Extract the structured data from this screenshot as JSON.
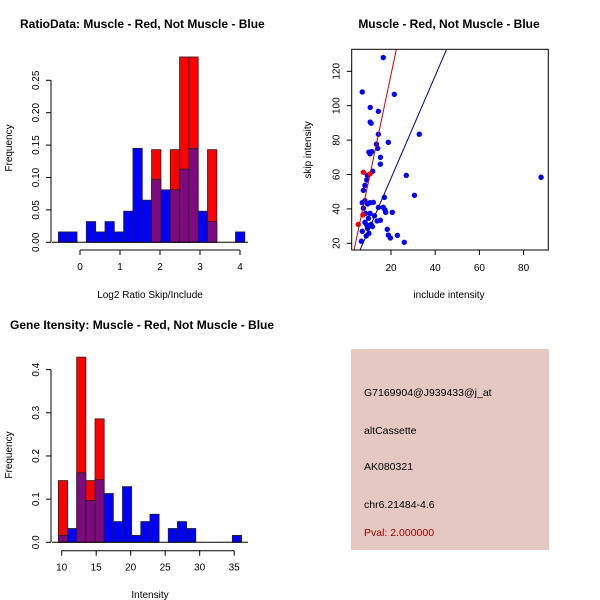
{
  "colors": {
    "muscle": "#ff0000",
    "not_muscle": "#0000ff",
    "overlap": "#7f0a7f",
    "info_bg": "#e5c8c2",
    "pval": "#a00000"
  },
  "chart_data": [
    {
      "type": "bar",
      "title": "RatioData: Muscle - Red, Not Muscle - Blue",
      "xlabel": "Log2 Ratio Skip/Include",
      "ylabel": "Frequency",
      "bin_start": -0.54,
      "bin_width": 0.233,
      "xticks": [
        "0",
        "1",
        "2",
        "3",
        "4"
      ],
      "yticks": [
        "0.00",
        "0.05",
        "0.10",
        "0.15",
        "0.20",
        "0.25"
      ],
      "xlim": [
        -0.6,
        4.2
      ],
      "ylim": [
        0,
        0.29
      ],
      "series": [
        {
          "name": "Muscle",
          "color": "red",
          "values": [
            0,
            0,
            0,
            0,
            0,
            0,
            0,
            0,
            0,
            0,
            0.143,
            0,
            0.143,
            0.286,
            0.286,
            0,
            0.143,
            0,
            0,
            0
          ]
        },
        {
          "name": "Not Muscle",
          "color": "blue",
          "values": [
            0.016,
            0.016,
            0,
            0.032,
            0.016,
            0.032,
            0.016,
            0.048,
            0.145,
            0.065,
            0.097,
            0.081,
            0.081,
            0.113,
            0.145,
            0.048,
            0.032,
            0,
            0,
            0.016
          ]
        }
      ]
    },
    {
      "type": "scatter",
      "title": "Muscle - Red, Not Muscle - Blue",
      "xlabel": "include intensity",
      "ylabel": "skip intensity",
      "xticks": [
        "20",
        "40",
        "60",
        "80"
      ],
      "yticks": [
        "20",
        "40",
        "60",
        "80",
        "100",
        "120"
      ],
      "xlim": [
        2.2,
        91.2
      ],
      "ylim": [
        16.1,
        132.8
      ],
      "series": [
        {
          "name": "Not Muscle",
          "color": "blue",
          "points": [
            [
              16.5,
              128
            ],
            [
              7,
              108
            ],
            [
              21.5,
              106.6
            ],
            [
              10.6,
              99
            ],
            [
              14.3,
              96.7
            ],
            [
              10.6,
              90.5
            ],
            [
              11,
              89.8
            ],
            [
              14.3,
              83.4
            ],
            [
              32.8,
              83.4
            ],
            [
              18.8,
              78.7
            ],
            [
              13.4,
              77.6
            ],
            [
              14,
              75.2
            ],
            [
              10,
              73
            ],
            [
              10.5,
              72
            ],
            [
              11.3,
              73.3
            ],
            [
              15.2,
              70
            ],
            [
              15.2,
              66
            ],
            [
              11.7,
              61.9
            ],
            [
              9.3,
              59.5
            ],
            [
              26.9,
              59.5
            ],
            [
              87.9,
              58.4
            ],
            [
              9,
              56.8
            ],
            [
              8.2,
              53.7
            ],
            [
              7.5,
              50.8
            ],
            [
              17,
              46.7
            ],
            [
              30.6,
              47.9
            ],
            [
              7,
              43.6
            ],
            [
              8.2,
              44.8
            ],
            [
              9.4,
              42.9
            ],
            [
              10.5,
              43.6
            ],
            [
              12,
              43.8
            ],
            [
              14.3,
              40.9
            ],
            [
              16.5,
              40.9
            ],
            [
              17.3,
              39.4
            ],
            [
              17.6,
              38
            ],
            [
              20.6,
              38
            ],
            [
              7.5,
              40.4
            ],
            [
              8.5,
              37.4
            ],
            [
              10.5,
              37.4
            ],
            [
              12.5,
              36
            ],
            [
              9.8,
              34.5
            ],
            [
              13.7,
              33
            ],
            [
              15.2,
              33.4
            ],
            [
              8.2,
              32.2
            ],
            [
              9,
              30.7
            ],
            [
              11,
              31
            ],
            [
              11.6,
              29.7
            ],
            [
              9.4,
              28.7
            ],
            [
              18.3,
              28.1
            ],
            [
              10,
              25.8
            ],
            [
              8.8,
              24.3
            ],
            [
              18.8,
              24.8
            ],
            [
              19.7,
              23.1
            ],
            [
              22.9,
              24.6
            ],
            [
              7,
              27
            ],
            [
              6.6,
              21.2
            ],
            [
              26,
              20.6
            ]
          ]
        },
        {
          "name": "Muscle",
          "color": "red",
          "points": [
            [
              7.5,
              61.3
            ],
            [
              10.5,
              60.3
            ],
            [
              7.3,
              36.5
            ],
            [
              5.2,
              31
            ]
          ]
        }
      ],
      "fit_lines": [
        {
          "name": "Muscle fit",
          "color": "red",
          "slope": 6.1,
          "intercept": -4
        },
        {
          "name": "Not Muscle fit",
          "color": "blue",
          "slope": 2.98,
          "intercept": -1.8
        }
      ]
    },
    {
      "type": "bar",
      "title": "Gene Itensity: Muscle - Red, Not Muscle - Blue",
      "xlabel": "Intensity",
      "ylabel": "Frequency",
      "bin_start": 9.52,
      "bin_width": 1.327,
      "xticks": [
        "10",
        "15",
        "20",
        "25",
        "30",
        "35"
      ],
      "yticks": [
        "0.0",
        "0.1",
        "0.2",
        "0.3",
        "0.4"
      ],
      "xlim": [
        9,
        37
      ],
      "ylim": [
        0,
        0.43
      ],
      "series": [
        {
          "name": "Muscle",
          "color": "red",
          "values": [
            0.143,
            0,
            0.429,
            0.143,
            0.286,
            0,
            0,
            0,
            0,
            0,
            0,
            0,
            0,
            0,
            0,
            0,
            0,
            0,
            0,
            0
          ]
        },
        {
          "name": "Not Muscle",
          "color": "blue",
          "values": [
            0.016,
            0.032,
            0.161,
            0.097,
            0.145,
            0.113,
            0.048,
            0.129,
            0.016,
            0.048,
            0.065,
            0,
            0.032,
            0.048,
            0.032,
            0,
            0,
            0,
            0,
            0.016
          ]
        }
      ]
    }
  ],
  "info": {
    "probe_id": "G7169904@J939433@j_at",
    "event_type": "altCassette",
    "accession": "AK080321",
    "location": "chr6.21484-4.6",
    "pval": "Pval: 2.000000"
  }
}
